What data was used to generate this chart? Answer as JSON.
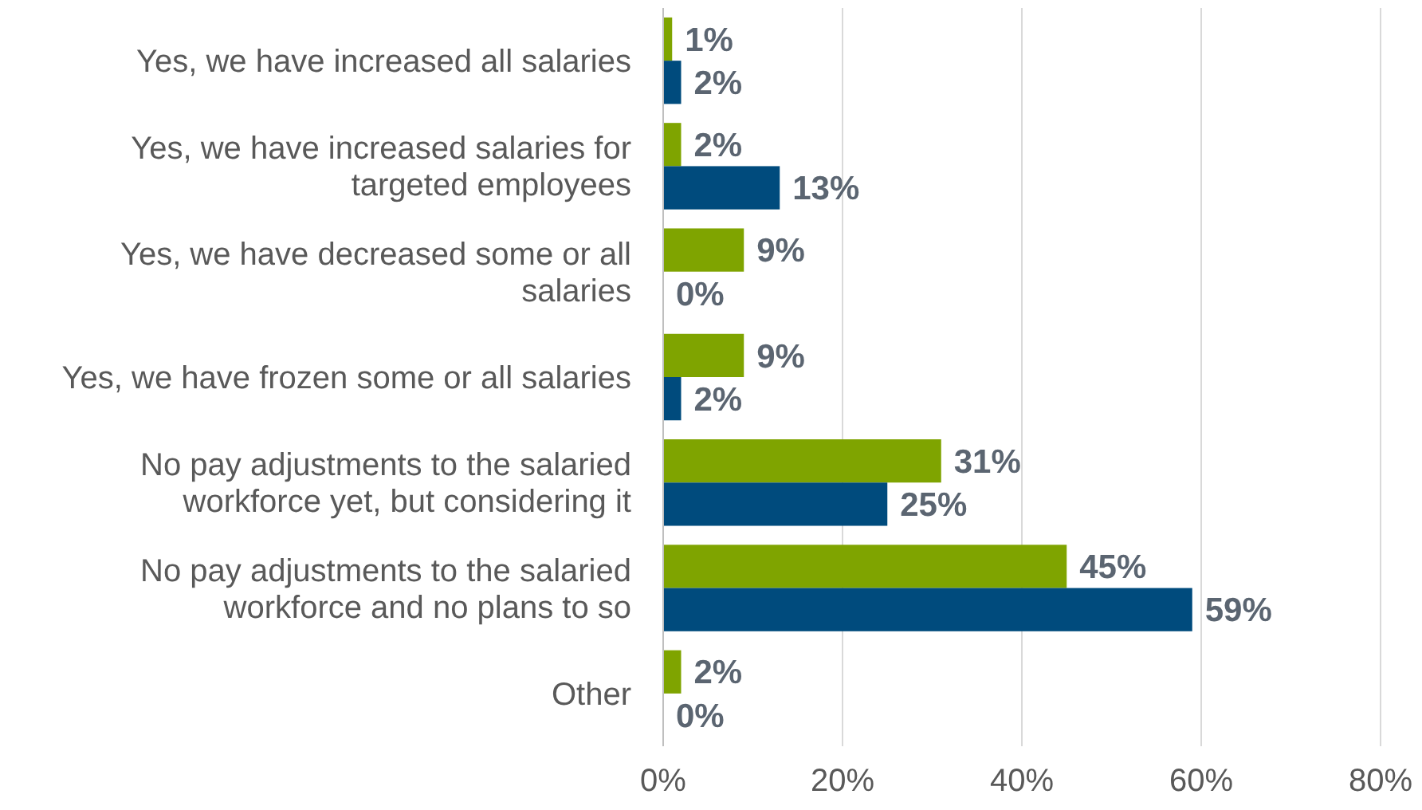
{
  "chart_data": {
    "type": "bar",
    "orientation": "horizontal",
    "categories": [
      "Yes, we have increased all salaries",
      "Yes, we have increased salaries for targeted employees",
      "Yes, we have decreased some or all salaries",
      "Yes, we have frozen some or all salaries",
      "No pay adjustments to the salaried workforce yet, but considering it",
      "No pay adjustments to the salaried workforce and no plans to so",
      "Other"
    ],
    "series": [
      {
        "color": "#7fa400",
        "values": [
          1,
          2,
          9,
          9,
          31,
          45,
          2
        ],
        "value_labels": [
          "1%",
          "2%",
          "9%",
          "9%",
          "31%",
          "45%",
          "2%"
        ]
      },
      {
        "color": "#004b7d",
        "values": [
          2,
          13,
          0,
          2,
          25,
          59,
          0
        ],
        "value_labels": [
          "2%",
          "13%",
          "0%",
          "2%",
          "25%",
          "59%",
          "0%"
        ]
      }
    ],
    "xlim": [
      0,
      80
    ],
    "xticks": [
      {
        "value": 0,
        "label": "0%"
      },
      {
        "value": 20,
        "label": "20%"
      },
      {
        "value": 40,
        "label": "40%"
      },
      {
        "value": 60,
        "label": "60%"
      },
      {
        "value": 80,
        "label": "80%"
      }
    ],
    "grid": "x"
  }
}
